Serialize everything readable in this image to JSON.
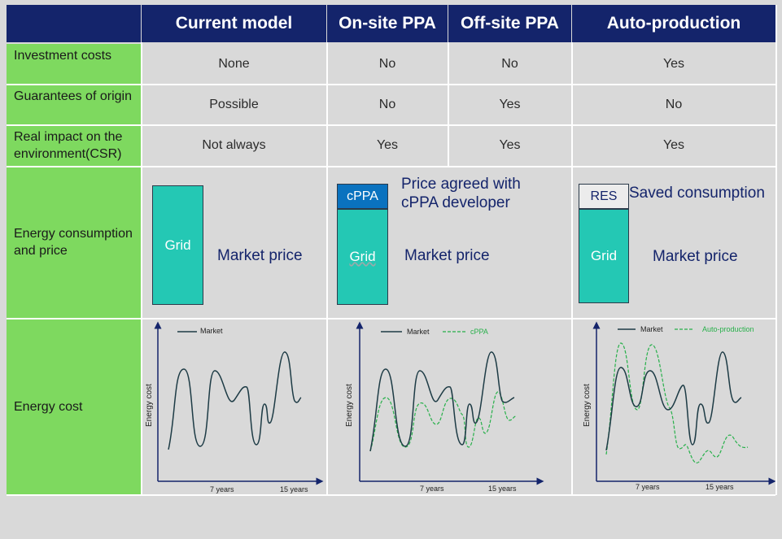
{
  "header": {
    "col1": "Current model",
    "col2": "On-site PPA",
    "col3": "Off-site PPA",
    "col4": "Auto-production"
  },
  "rows": [
    {
      "label": "Investment costs",
      "values": [
        "None",
        "No",
        "No",
        "Yes"
      ]
    },
    {
      "label": "Guarantees of origin",
      "values": [
        "Possible",
        "No",
        "Yes",
        "No"
      ]
    },
    {
      "label": "Real impact on the environment(CSR)",
      "values": [
        "Not always",
        "Yes",
        "Yes",
        "Yes"
      ]
    }
  ],
  "consumption": {
    "label": "Energy consumption and price",
    "grid": "Grid",
    "market_price": "Market price",
    "cppa": "cPPA",
    "cppa_note": "Price agreed with cPPA developer",
    "res": "RES",
    "saved": "Saved consumption"
  },
  "cost": {
    "label": "Energy cost",
    "y_axis": "Energy cost",
    "x_tick_1": "7 years",
    "x_tick_2": "15 years",
    "legend_market": "Market",
    "legend_cppa": "cPPA",
    "legend_auto": "Auto-production"
  },
  "colors": {
    "header_bg": "#14246b",
    "label_bg": "#7ed95f",
    "grid_bar": "#24c8b4",
    "cppa_bar": "#0a72bf",
    "market_line": "#1d3b45",
    "dashed_line": "#27b04a"
  }
}
